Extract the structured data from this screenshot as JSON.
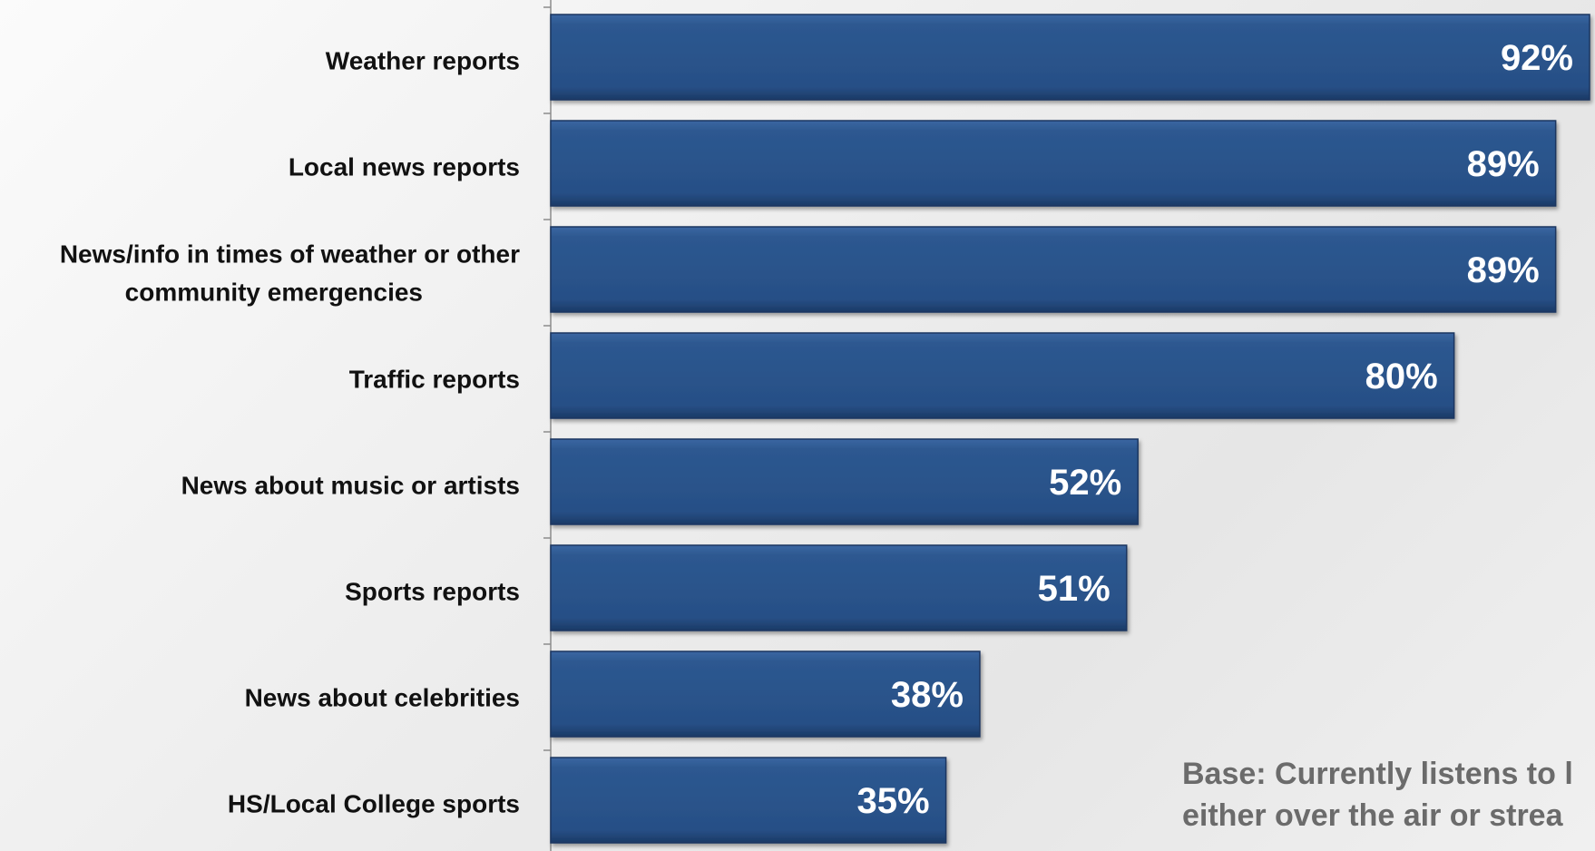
{
  "chart_data": {
    "type": "bar",
    "orientation": "horizontal",
    "categories": [
      "Weather reports",
      "Local news reports",
      "News/info in times of weather or other community emergencies",
      "Traffic reports",
      "News about music or artists",
      "Sports reports",
      "News about celebrities",
      "HS/Local College sports"
    ],
    "category_lines": [
      [
        "Weather reports"
      ],
      [
        "Local news reports"
      ],
      [
        "News/info in times of weather or other",
        "community emergencies"
      ],
      [
        "Traffic reports"
      ],
      [
        "News about music or artists"
      ],
      [
        "Sports reports"
      ],
      [
        "News about celebrities"
      ],
      [
        "HS/Local College sports"
      ]
    ],
    "values": [
      92,
      89,
      89,
      80,
      52,
      51,
      38,
      35
    ],
    "value_labels": [
      "92%",
      "89%",
      "89%",
      "80%",
      "52%",
      "51%",
      "38%",
      "35%"
    ],
    "title": "",
    "xlabel": "",
    "ylabel": "",
    "xlim": [
      0,
      92
    ],
    "grid": false,
    "legend": "none",
    "bar_color": "#2a5289"
  },
  "footnote": {
    "line1": "Base: Currently listens to l",
    "line2": "either over the air or strea"
  }
}
